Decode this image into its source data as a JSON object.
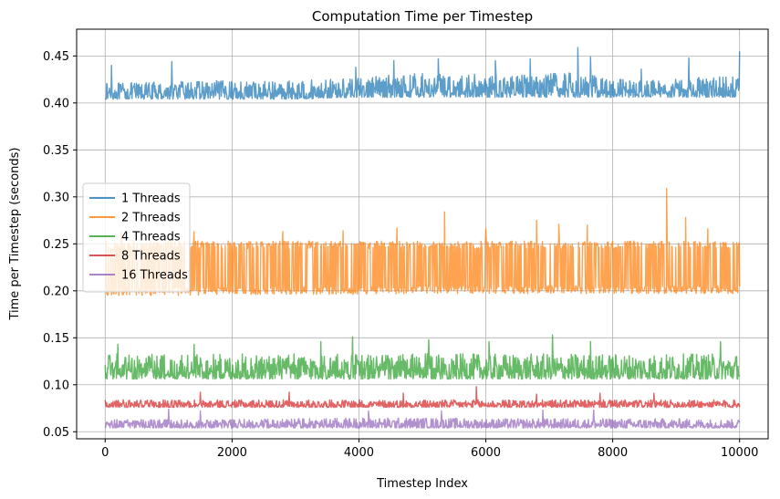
{
  "chart_data": {
    "type": "line",
    "title": "Computation Time per Timestep",
    "xlabel": "Timestep Index",
    "ylabel": "Time per Timestep (seconds)",
    "xlim": [
      -450,
      10450
    ],
    "ylim": [
      0.0425,
      0.4785
    ],
    "xticks": [
      0,
      2000,
      4000,
      6000,
      8000,
      10000
    ],
    "xtick_labels": [
      "0",
      "2000",
      "4000",
      "6000",
      "8000",
      "10000"
    ],
    "yticks": [
      0.05,
      0.1,
      0.15,
      0.2,
      0.25,
      0.3,
      0.35,
      0.4,
      0.45
    ],
    "ytick_labels": [
      "0.05",
      "0.10",
      "0.15",
      "0.20",
      "0.25",
      "0.30",
      "0.35",
      "0.40",
      "0.45"
    ],
    "grid": true,
    "legend_position": "center-left",
    "series": [
      {
        "name": "1 Threads",
        "color": "#1f77b4",
        "x": [
          0,
          1000,
          2000,
          3000,
          4000,
          4500,
          5000,
          5500,
          6000,
          6500,
          7000,
          7500,
          8000,
          8500,
          9000,
          9500,
          10000
        ],
        "baseline": [
          0.404,
          0.404,
          0.404,
          0.404,
          0.406,
          0.406,
          0.406,
          0.406,
          0.406,
          0.406,
          0.406,
          0.406,
          0.406,
          0.406,
          0.406,
          0.406,
          0.406
        ],
        "typical_high": [
          0.421,
          0.423,
          0.424,
          0.424,
          0.426,
          0.43,
          0.432,
          0.432,
          0.43,
          0.43,
          0.432,
          0.432,
          0.426,
          0.424,
          0.426,
          0.428,
          0.428
        ],
        "peaks": [
          [
            100,
            0.44
          ],
          [
            1050,
            0.444
          ],
          [
            3950,
            0.438
          ],
          [
            4550,
            0.445
          ],
          [
            5250,
            0.447
          ],
          [
            6150,
            0.445
          ],
          [
            6700,
            0.447
          ],
          [
            7450,
            0.459
          ],
          [
            7650,
            0.449
          ],
          [
            8450,
            0.436
          ],
          [
            9200,
            0.448
          ],
          [
            10000,
            0.455
          ]
        ]
      },
      {
        "name": "2 Threads",
        "color": "#ff7f0e",
        "x": [
          0,
          1000,
          2000,
          3000,
          4000,
          5000,
          6000,
          7000,
          8000,
          9000,
          10000
        ],
        "baseline": [
          0.195,
          0.195,
          0.196,
          0.196,
          0.196,
          0.197,
          0.197,
          0.197,
          0.197,
          0.197,
          0.197
        ],
        "typical_high": [
          0.253,
          0.253,
          0.253,
          0.253,
          0.253,
          0.253,
          0.253,
          0.253,
          0.253,
          0.253,
          0.253
        ],
        "peaks": [
          [
            250,
            0.263
          ],
          [
            1400,
            0.263
          ],
          [
            2800,
            0.263
          ],
          [
            3750,
            0.264
          ],
          [
            4600,
            0.267
          ],
          [
            5350,
            0.284
          ],
          [
            6000,
            0.266
          ],
          [
            6800,
            0.275
          ],
          [
            7150,
            0.271
          ],
          [
            7600,
            0.27
          ],
          [
            8850,
            0.309
          ],
          [
            9150,
            0.278
          ],
          [
            9500,
            0.266
          ]
        ]
      },
      {
        "name": "4 Threads",
        "color": "#2ca02c",
        "x": [
          0,
          1000,
          2000,
          3000,
          4000,
          5000,
          6000,
          7000,
          8000,
          9000,
          10000
        ],
        "baseline": [
          0.106,
          0.106,
          0.106,
          0.106,
          0.106,
          0.106,
          0.106,
          0.106,
          0.106,
          0.106,
          0.106
        ],
        "typical_high": [
          0.133,
          0.133,
          0.133,
          0.133,
          0.133,
          0.133,
          0.133,
          0.133,
          0.133,
          0.133,
          0.133
        ],
        "peaks": [
          [
            200,
            0.143
          ],
          [
            1400,
            0.143
          ],
          [
            3400,
            0.146
          ],
          [
            3900,
            0.151
          ],
          [
            5100,
            0.148
          ],
          [
            6050,
            0.146
          ],
          [
            7050,
            0.153
          ],
          [
            7650,
            0.146
          ],
          [
            9700,
            0.146
          ]
        ]
      },
      {
        "name": "8 Threads",
        "color": "#d62728",
        "x": [
          0,
          1000,
          2000,
          3000,
          4000,
          5000,
          6000,
          7000,
          8000,
          9000,
          10000
        ],
        "baseline": [
          0.076,
          0.076,
          0.076,
          0.076,
          0.076,
          0.076,
          0.076,
          0.076,
          0.076,
          0.076,
          0.076
        ],
        "typical_high": [
          0.084,
          0.084,
          0.084,
          0.084,
          0.084,
          0.084,
          0.084,
          0.084,
          0.084,
          0.084,
          0.084
        ],
        "peaks": [
          [
            1500,
            0.092
          ],
          [
            2900,
            0.092
          ],
          [
            4700,
            0.091
          ],
          [
            5850,
            0.098
          ],
          [
            6800,
            0.09
          ],
          [
            7800,
            0.091
          ],
          [
            8650,
            0.091
          ]
        ]
      },
      {
        "name": "16 Threads",
        "color": "#9467bd",
        "x": [
          0,
          1000,
          2000,
          3000,
          4000,
          5000,
          6000,
          7000,
          8000,
          9000,
          10000
        ],
        "baseline": [
          0.054,
          0.054,
          0.054,
          0.054,
          0.054,
          0.054,
          0.054,
          0.054,
          0.054,
          0.054,
          0.054
        ],
        "typical_high": [
          0.063,
          0.063,
          0.063,
          0.064,
          0.065,
          0.065,
          0.064,
          0.064,
          0.064,
          0.064,
          0.063
        ],
        "peaks": [
          [
            1000,
            0.074
          ],
          [
            1500,
            0.072
          ],
          [
            4150,
            0.072
          ],
          [
            5300,
            0.072
          ],
          [
            6900,
            0.073
          ],
          [
            7700,
            0.073
          ]
        ]
      }
    ]
  }
}
